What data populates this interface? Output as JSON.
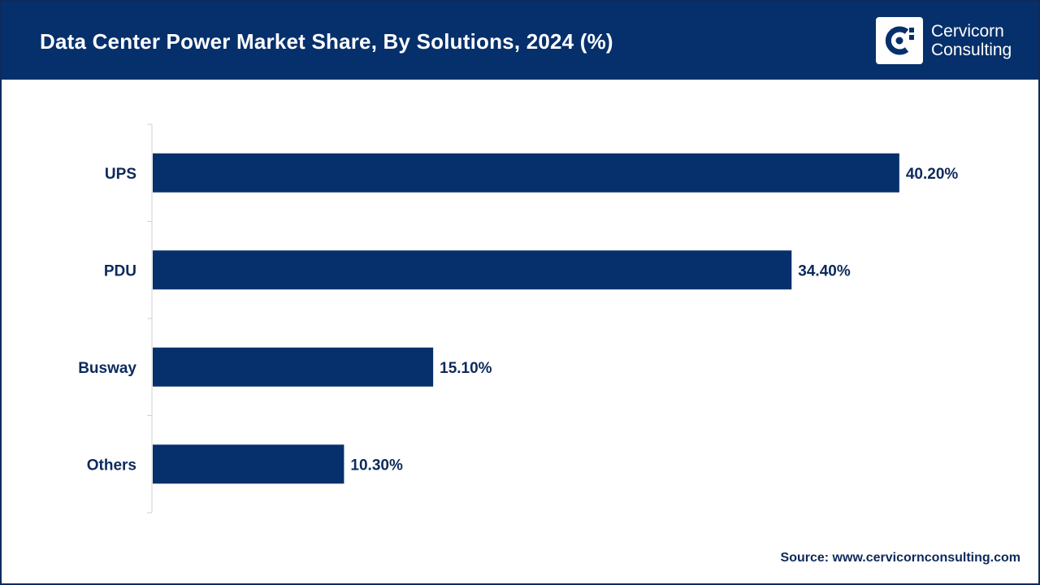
{
  "header": {
    "title": "Data Center Power Market Share, By Solutions, 2024 (%)",
    "brand_line1": "Cervicorn",
    "brand_line2": "Consulting"
  },
  "source": "Source: www.cervicornconsulting.com",
  "colors": {
    "bar": "#06306b",
    "header": "#06306b",
    "text": "#0d2a5c"
  },
  "chart_data": {
    "type": "bar",
    "orientation": "horizontal",
    "title": "Data Center Power Market Share, By Solutions, 2024 (%)",
    "categories": [
      "UPS",
      "PDU",
      "Busway",
      "Others"
    ],
    "values": [
      40.2,
      34.4,
      15.1,
      10.3
    ],
    "labels": [
      "40.20%",
      "34.40%",
      "15.10%",
      "10.30%"
    ],
    "xlabel": "",
    "ylabel": "",
    "xlim": [
      0,
      42
    ],
    "grid": false,
    "legend": "none"
  }
}
